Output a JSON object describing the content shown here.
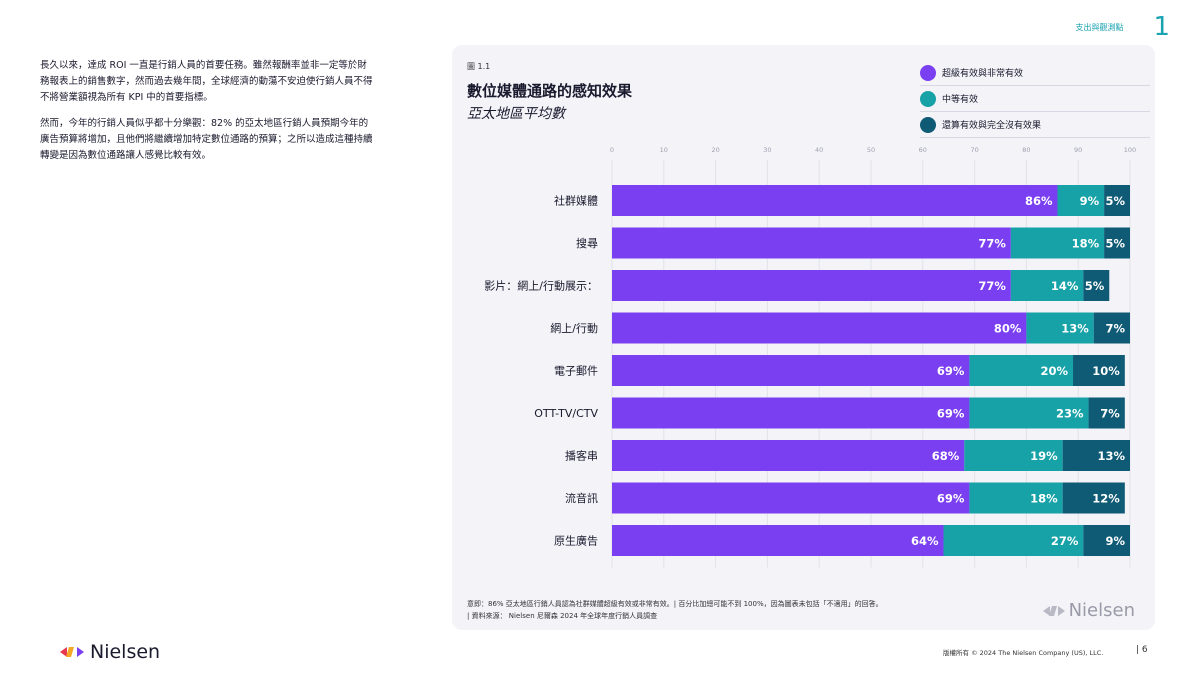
{
  "header": {
    "section_title": "支出與觀測點",
    "section_number": "1"
  },
  "body_text": {
    "p1": "長久以來，達成 ROI 一直是行銷人員的首要任務。雖然報酬率並非一定等於財務報表上的銷售數字，然而過去幾年間，全球經濟的動蕩不安迫使行銷人員不得不將營業額視為所有 KPI 中的首要指標。",
    "p2": "然而，今年的行銷人員似乎都十分樂觀：82% 的亞太地區行銷人員預期今年的廣告預算將增加，且他們將繼續增加特定數位通路的預算；之所以造成這種持續轉變是因為數位通路讓人感覺比較有效。"
  },
  "figure": {
    "label": "圖 1.1",
    "title": "數位媒體通路的感知效果",
    "subtitle": "亞太地區平均數",
    "footnote_line1": "意即：86% 亞太地區行銷人員認為社群媒體超級有效或非常有效。| 百分比加總可能不到 100%，因為圖表未包括「不適用」的回答。",
    "footnote_line2": "| 資料來源： Nielsen 尼爾森 2024 年全球年度行銷人員調查",
    "logo_text": "Nielsen"
  },
  "colors": {
    "purple": "#7b3ff2",
    "teal": "#17a2a8",
    "navy": "#0f5a75"
  },
  "chart_data": {
    "type": "bar",
    "orientation": "horizontal",
    "stacked": true,
    "xlim": [
      0,
      100
    ],
    "ticks": [
      0,
      10,
      20,
      30,
      40,
      50,
      60,
      70,
      80,
      90,
      100
    ],
    "grid": true,
    "legend_position": "top-right",
    "categories": [
      "社群媒體",
      "搜尋",
      "影片：網上/行動展示：",
      "網上/行動",
      "電子郵件",
      "OTT-TV/CTV",
      "播客串",
      "流音訊",
      "原生廣告"
    ],
    "series": [
      {
        "name": "超級有效與非常有效",
        "color": "#7b3ff2",
        "values": [
          86,
          77,
          77,
          80,
          69,
          69,
          68,
          69,
          64
        ]
      },
      {
        "name": "中等有效",
        "color": "#17a2a8",
        "values": [
          9,
          18,
          14,
          13,
          20,
          23,
          19,
          18,
          27
        ]
      },
      {
        "name": "還算有效與完全沒有效果",
        "color": "#0f5a75",
        "values": [
          5,
          5,
          5,
          7,
          10,
          7,
          13,
          12,
          9
        ]
      }
    ],
    "value_labels": [
      [
        "86%",
        "9%",
        "5%"
      ],
      [
        "77%",
        "18%",
        "5%"
      ],
      [
        "77%",
        "14%",
        "5%"
      ],
      [
        "80%",
        "13%",
        "7%"
      ],
      [
        "69%",
        "20%",
        "10%"
      ],
      [
        "69%",
        "23%",
        "7%"
      ],
      [
        "68%",
        "19%",
        "13%"
      ],
      [
        "69%",
        "18%",
        "12%"
      ],
      [
        "64%",
        "27%",
        "9%"
      ]
    ]
  },
  "footer": {
    "logo_text": "Nielsen",
    "copyright": "版權所有 © 2024 The Nielsen Company (US), LLC.",
    "page": "| 6"
  }
}
